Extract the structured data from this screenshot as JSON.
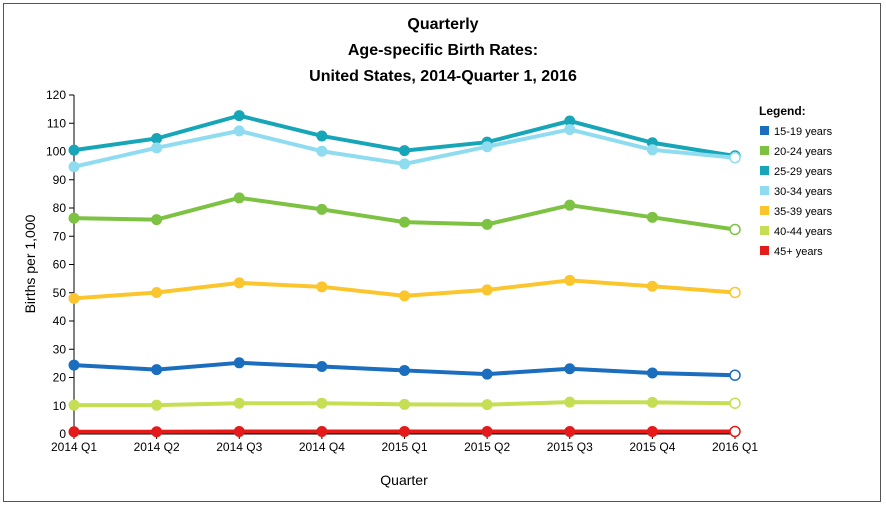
{
  "chart_data": {
    "type": "line",
    "title_lines": [
      "Quarterly",
      "Age-specific Birth Rates:",
      "United States, 2014-Quarter 1, 2016"
    ],
    "xlabel": "Quarter",
    "ylabel": "Births per 1,000",
    "ylim": [
      0,
      120
    ],
    "yticks": [
      0,
      10,
      20,
      30,
      40,
      50,
      60,
      70,
      80,
      90,
      100,
      110,
      120
    ],
    "grid": false,
    "legend_title": "Legend:",
    "legend_position": "right",
    "categories": [
      "2014 Q1",
      "2014 Q2",
      "2014 Q3",
      "2014 Q4",
      "2015 Q1",
      "2015 Q2",
      "2015 Q3",
      "2015 Q4",
      "2016 Q1"
    ],
    "series": [
      {
        "name": "15-19 years",
        "color": "#1a6ebd",
        "values": [
          24.4,
          22.8,
          25.2,
          23.9,
          22.5,
          21.2,
          23.1,
          21.6,
          20.8
        ]
      },
      {
        "name": "20-24 years",
        "color": "#7dc242",
        "values": [
          76.4,
          75.9,
          83.6,
          79.5,
          75.0,
          74.2,
          81.0,
          76.7,
          72.4
        ]
      },
      {
        "name": "25-29 years",
        "color": "#17a6b8",
        "values": [
          100.5,
          104.6,
          112.7,
          105.5,
          100.3,
          103.3,
          110.8,
          103.1,
          98.4
        ]
      },
      {
        "name": "30-34 years",
        "color": "#8fdcf0",
        "values": [
          94.6,
          101.3,
          107.3,
          100.1,
          95.6,
          101.7,
          107.8,
          100.6,
          97.8
        ]
      },
      {
        "name": "35-39 years",
        "color": "#fbc52d",
        "values": [
          48.0,
          50.1,
          53.5,
          52.1,
          48.9,
          51.0,
          54.4,
          52.3,
          50.1
        ]
      },
      {
        "name": "40-44 years",
        "color": "#c5de53",
        "values": [
          10.2,
          10.2,
          10.9,
          10.9,
          10.5,
          10.4,
          11.3,
          11.2,
          10.9
        ]
      },
      {
        "name": "45+ years",
        "color": "#e31b1b",
        "values": [
          0.8,
          0.8,
          0.9,
          0.9,
          0.9,
          0.9,
          0.9,
          0.9,
          0.9
        ]
      }
    ]
  }
}
